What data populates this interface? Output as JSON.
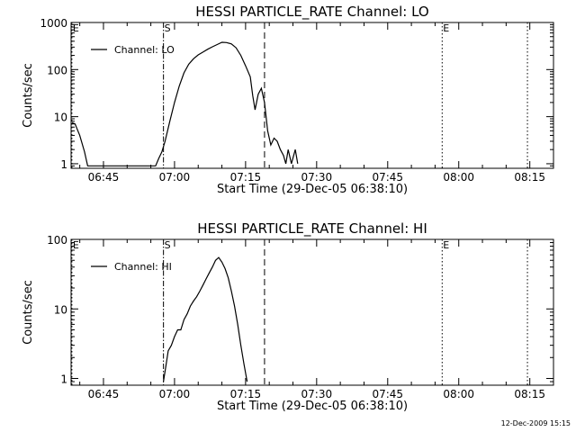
{
  "footer_timestamp": "12-Dec-2009 15:15",
  "chart_data": [
    {
      "type": "line",
      "title": "HESSI PARTICLE_RATE Channel: LO",
      "xlabel": "Start Time (29-Dec-05 06:38:10)",
      "ylabel": "Counts/sec",
      "x_tick_labels": [
        "06:45",
        "07:00",
        "07:15",
        "07:30",
        "07:45",
        "08:00",
        "08:15"
      ],
      "xlim": [
        "06:38:10",
        "08:20:00"
      ],
      "y_scale": "log",
      "y_tick_labels": [
        "1",
        "10",
        "100",
        "1000"
      ],
      "ylim": [
        0.8,
        1000
      ],
      "legend_position": "upper-left",
      "markers": [
        {
          "time": "06:38:20",
          "style": "dotted",
          "label": "E"
        },
        {
          "time": "06:57:40",
          "style": "dash-dot",
          "label": "S"
        },
        {
          "time": "07:19:00",
          "style": "dashed",
          "label": ""
        },
        {
          "time": "07:56:30",
          "style": "dotted",
          "label": "E"
        },
        {
          "time": "08:14:30",
          "style": "dotted",
          "label": ""
        }
      ],
      "series": [
        {
          "name": "Channel: LO",
          "points": [
            [
              "06:38:20",
              7.5
            ],
            [
              "06:39:00",
              7.0
            ],
            [
              "06:40:00",
              4.0
            ],
            [
              "06:41:00",
              1.8
            ],
            [
              "06:41:40",
              0.9
            ],
            [
              "06:56:00",
              0.9
            ],
            [
              "06:56:40",
              1.3
            ],
            [
              "06:57:20",
              1.8
            ],
            [
              "06:58:00",
              3.0
            ],
            [
              "06:59:00",
              8.0
            ],
            [
              "07:00:00",
              20.0
            ],
            [
              "07:01:00",
              45.0
            ],
            [
              "07:02:00",
              85.0
            ],
            [
              "07:03:00",
              130.0
            ],
            [
              "07:04:00",
              170.0
            ],
            [
              "07:05:00",
              205.0
            ],
            [
              "07:06:00",
              235.0
            ],
            [
              "07:07:00",
              270.0
            ],
            [
              "07:08:00",
              305.0
            ],
            [
              "07:09:00",
              340.0
            ],
            [
              "07:10:00",
              380.0
            ],
            [
              "07:11:00",
              375.0
            ],
            [
              "07:12:00",
              350.0
            ],
            [
              "07:13:00",
              290.0
            ],
            [
              "07:14:00",
              200.0
            ],
            [
              "07:15:00",
              120.0
            ],
            [
              "07:16:00",
              70.0
            ],
            [
              "07:16:30",
              28.0
            ],
            [
              "07:17:00",
              14.0
            ],
            [
              "07:17:40",
              30.0
            ],
            [
              "07:18:20",
              40.0
            ],
            [
              "07:19:00",
              20.0
            ],
            [
              "07:19:40",
              5.0
            ],
            [
              "07:20:20",
              2.5
            ],
            [
              "07:21:00",
              3.5
            ],
            [
              "07:21:40",
              3.0
            ],
            [
              "07:22:20",
              2.0
            ],
            [
              "07:23:00",
              1.5
            ],
            [
              "07:23:30",
              1.0
            ],
            [
              "07:24:00",
              2.0
            ],
            [
              "07:24:40",
              1.0
            ],
            [
              "07:25:30",
              2.0
            ],
            [
              "07:26:00",
              1.0
            ]
          ]
        }
      ]
    },
    {
      "type": "line",
      "title": "HESSI PARTICLE_RATE Channel: HI",
      "xlabel": "Start Time (29-Dec-05 06:38:10)",
      "ylabel": "Counts/sec",
      "x_tick_labels": [
        "06:45",
        "07:00",
        "07:15",
        "07:30",
        "07:45",
        "08:00",
        "08:15"
      ],
      "xlim": [
        "06:38:10",
        "08:20:00"
      ],
      "y_scale": "log",
      "y_tick_labels": [
        "1",
        "10",
        "100"
      ],
      "ylim": [
        0.8,
        100
      ],
      "legend_position": "upper-left",
      "markers": [
        {
          "time": "06:38:20",
          "style": "dotted",
          "label": "E"
        },
        {
          "time": "06:57:40",
          "style": "dash-dot",
          "label": "S"
        },
        {
          "time": "07:19:00",
          "style": "dashed",
          "label": ""
        },
        {
          "time": "07:56:30",
          "style": "dotted",
          "label": "E"
        },
        {
          "time": "08:14:30",
          "style": "dotted",
          "label": ""
        }
      ],
      "series": [
        {
          "name": "Channel: HI",
          "points": [
            [
              "06:57:40",
              0.9
            ],
            [
              "06:58:10",
              1.5
            ],
            [
              "06:58:40",
              2.5
            ],
            [
              "06:59:20",
              3.0
            ],
            [
              "07:00:00",
              4.0
            ],
            [
              "07:00:40",
              5.0
            ],
            [
              "07:01:20",
              5.0
            ],
            [
              "07:02:00",
              7.0
            ],
            [
              "07:02:40",
              8.5
            ],
            [
              "07:03:20",
              11.0
            ],
            [
              "07:04:00",
              13.0
            ],
            [
              "07:04:40",
              15.0
            ],
            [
              "07:05:20",
              18.0
            ],
            [
              "07:06:00",
              22.0
            ],
            [
              "07:06:40",
              27.0
            ],
            [
              "07:07:20",
              33.0
            ],
            [
              "07:08:00",
              40.0
            ],
            [
              "07:08:40",
              50.0
            ],
            [
              "07:09:20",
              55.0
            ],
            [
              "07:10:00",
              47.0
            ],
            [
              "07:10:40",
              38.0
            ],
            [
              "07:11:20",
              28.0
            ],
            [
              "07:12:00",
              18.0
            ],
            [
              "07:12:40",
              11.0
            ],
            [
              "07:13:20",
              6.0
            ],
            [
              "07:14:00",
              3.0
            ],
            [
              "07:14:40",
              1.6
            ],
            [
              "07:15:20",
              0.9
            ]
          ]
        }
      ]
    }
  ]
}
